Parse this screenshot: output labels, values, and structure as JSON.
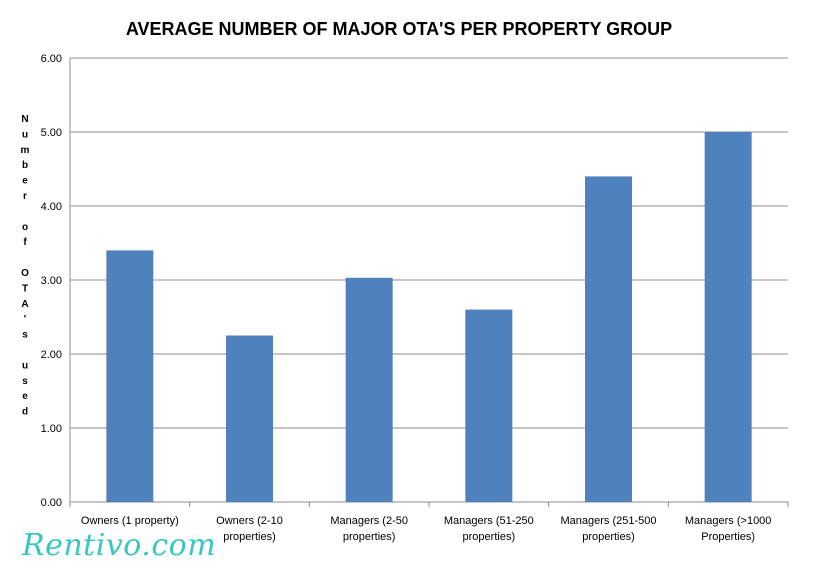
{
  "chart_data": {
    "type": "bar",
    "title": "AVERAGE NUMBER OF MAJOR OTA'S PER PROPERTY GROUP",
    "ylabel": "Number of OTA's used",
    "xlabel": "",
    "ylim": [
      0,
      6
    ],
    "yticks": [
      "0.00",
      "1.00",
      "2.00",
      "3.00",
      "4.00",
      "5.00",
      "6.00"
    ],
    "grid": true,
    "legend": "none",
    "categories": [
      [
        "Owners (1 property)"
      ],
      [
        "Owners (2-10",
        "properties)"
      ],
      [
        "Managers (2-50",
        "properties)"
      ],
      [
        "Managers (51-250",
        "properties)"
      ],
      [
        "Managers (251-500",
        "properties)"
      ],
      [
        "Managers (>1000",
        "Properties)"
      ]
    ],
    "values": [
      3.4,
      2.25,
      3.03,
      2.6,
      4.4,
      5.0
    ],
    "bar_color": "#4f81bd"
  },
  "watermark": "Rentivo.com"
}
